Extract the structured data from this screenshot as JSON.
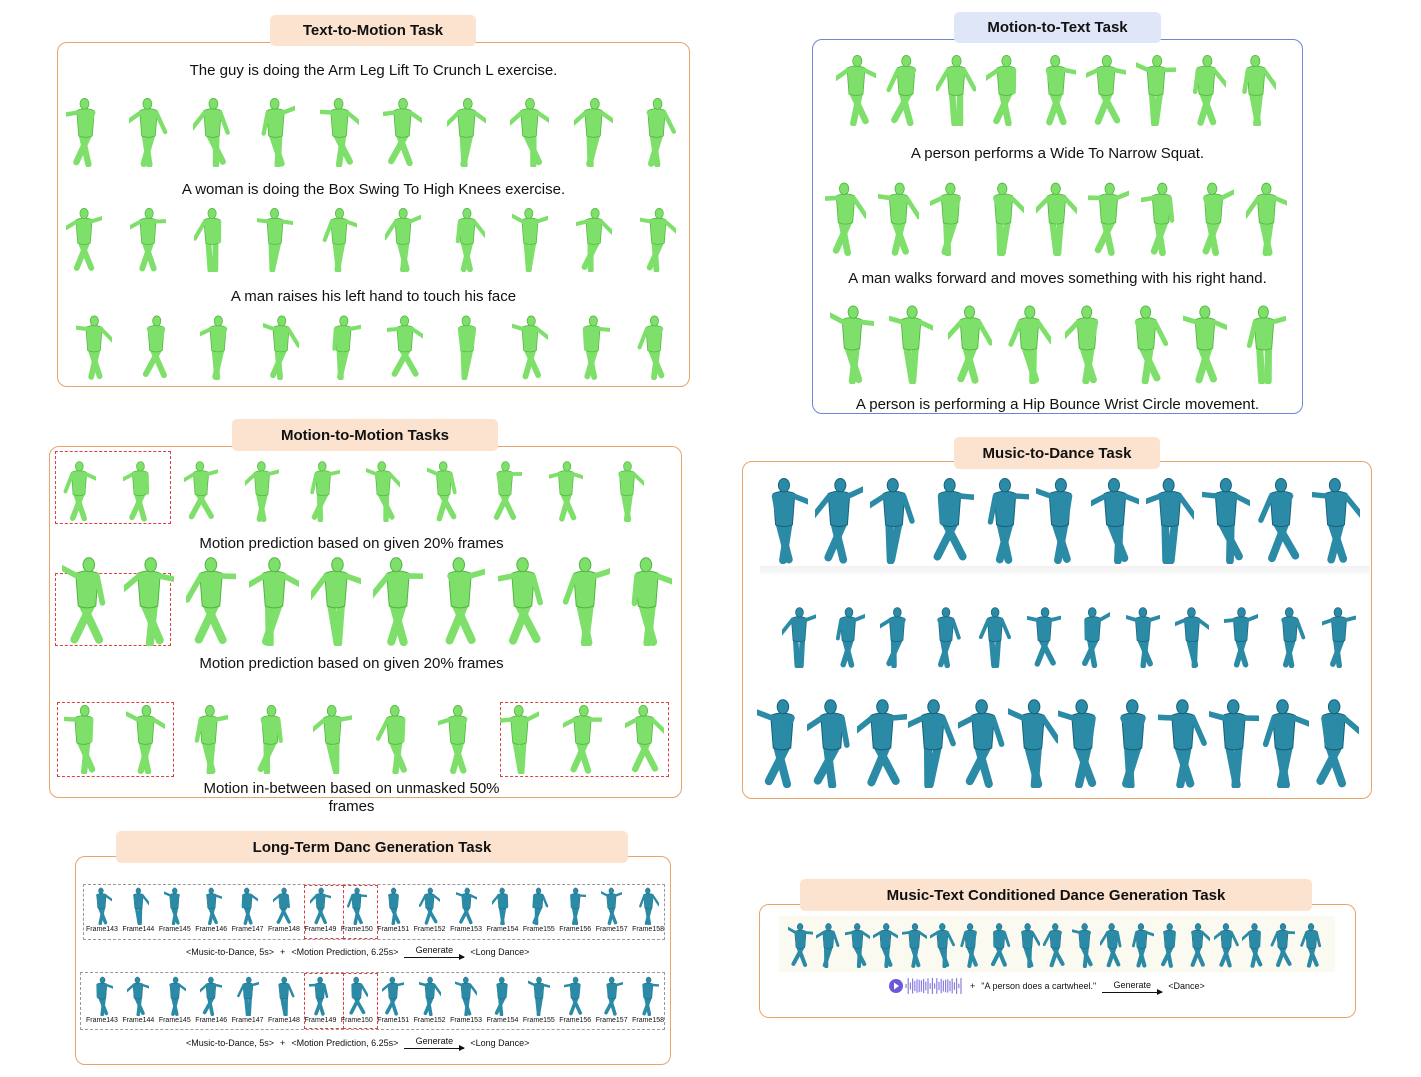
{
  "colors": {
    "green": "#7ee06a",
    "green_dark": "#4fb53e",
    "teal": "#2b8aa6",
    "teal_dark": "#14607a"
  },
  "icons": {
    "figure": "human-figure-icon",
    "audio": "audio-waveform-icon"
  },
  "t2m": {
    "title": "Text-to-Motion Task",
    "captions": [
      "The guy is doing the Arm Leg Lift To Crunch L exercise.",
      "A woman is doing the Box Swing To High Knees exercise.",
      "A man raises his left hand to touch his face"
    ]
  },
  "m2t": {
    "title": "Motion-to-Text Task",
    "captions": [
      "A person performs a Wide To Narrow Squat.",
      "A man walks forward and moves something with his right hand.",
      "A person is performing a Hip Bounce Wrist Circle movement."
    ]
  },
  "m2m": {
    "title": "Motion-to-Motion Tasks",
    "captions": [
      "Motion prediction based on given 20% frames",
      "Motion prediction based on given 20% frames",
      "Motion in-between based on unmasked 50%",
      "frames"
    ]
  },
  "m2d": {
    "title": "Music-to-Dance Task"
  },
  "ltd": {
    "title": "Long-Term Danc Generation Task",
    "frame_labels": [
      "Frame143",
      "Frame144",
      "Frame145",
      "Frame146",
      "Frame147",
      "Frame148",
      "Frame149",
      "Frame150",
      "Frame151",
      "Frame152",
      "Frame153",
      "Frame154",
      "Frame155",
      "Frame156",
      "Frame157",
      "Frame158"
    ],
    "formula": {
      "part1": "<Music-to-Dance, 5s>",
      "plus": "+",
      "part2": "<Motion Prediction, 6.25s>",
      "arrow": "Generate",
      "result": "<Long Dance>"
    }
  },
  "mtd": {
    "title": "Music-Text Conditioned Dance Generation Task",
    "formula": {
      "plus": "+",
      "text": "\"A person  does a cartwheel.\"",
      "arrow": "Generate",
      "result": "<Dance>"
    }
  }
}
